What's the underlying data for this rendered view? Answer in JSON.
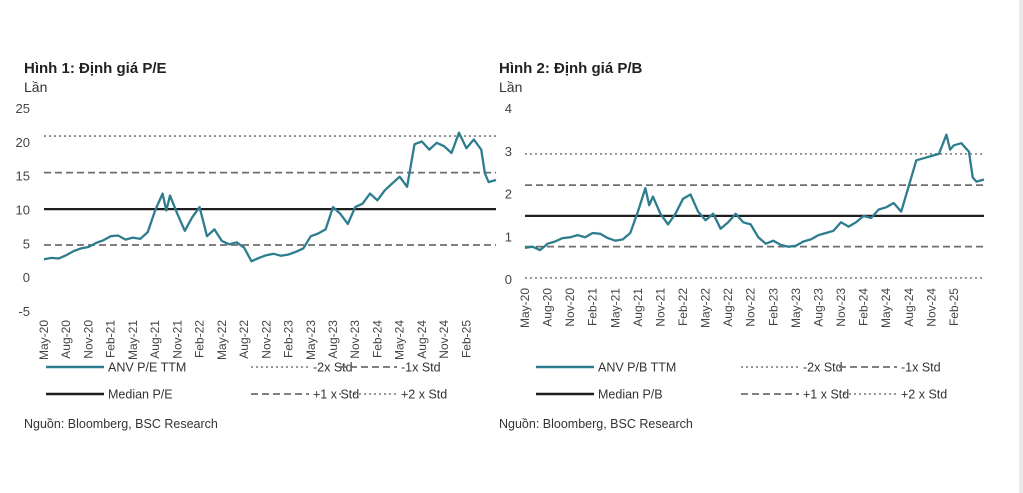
{
  "chart_data": [
    {
      "type": "line",
      "title": "Hình 1: Định giá P/E",
      "ylabel": "Lần",
      "source": "Nguồn: Bloomberg, BSC Research",
      "ylim": [
        -5,
        25
      ],
      "yticks": [
        -5,
        0,
        5,
        10,
        15,
        20,
        25
      ],
      "x_tick_labels": [
        "May-20",
        "Aug-20",
        "Nov-20",
        "Feb-21",
        "May-21",
        "Aug-21",
        "Nov-21",
        "Feb-22",
        "May-22",
        "Aug-22",
        "Nov-22",
        "Feb-23",
        "May-23",
        "Aug-23",
        "Nov-23",
        "Feb-24",
        "May-24",
        "Aug-24",
        "Nov-24",
        "Feb-25"
      ],
      "x_range_months": [
        0,
        61
      ],
      "series": [
        {
          "name": "ANV P/E TTM",
          "color": "#2e7d8f",
          "points": [
            [
              0,
              2.8
            ],
            [
              1,
              3.0
            ],
            [
              2,
              2.9
            ],
            [
              3,
              3.4
            ],
            [
              4,
              4.0
            ],
            [
              5,
              4.4
            ],
            [
              6,
              4.6
            ],
            [
              7,
              5.2
            ],
            [
              8,
              5.6
            ],
            [
              9,
              6.2
            ],
            [
              10,
              6.3
            ],
            [
              11,
              5.7
            ],
            [
              12,
              6.0
            ],
            [
              13,
              5.8
            ],
            [
              14,
              6.8
            ],
            [
              15,
              10.0
            ],
            [
              16,
              12.5
            ],
            [
              16.5,
              10.0
            ],
            [
              17,
              12.2
            ],
            [
              18,
              9.5
            ],
            [
              19,
              7.0
            ],
            [
              20,
              9.0
            ],
            [
              21,
              10.5
            ],
            [
              22,
              6.2
            ],
            [
              23,
              7.2
            ],
            [
              24,
              5.5
            ],
            [
              25,
              5.0
            ],
            [
              26,
              5.3
            ],
            [
              27,
              4.5
            ],
            [
              28,
              2.5
            ],
            [
              29,
              3.0
            ],
            [
              30,
              3.4
            ],
            [
              31,
              3.6
            ],
            [
              32,
              3.3
            ],
            [
              33,
              3.5
            ],
            [
              34,
              3.9
            ],
            [
              35,
              4.4
            ],
            [
              36,
              6.2
            ],
            [
              37,
              6.6
            ],
            [
              38,
              7.2
            ],
            [
              39,
              10.5
            ],
            [
              40,
              9.5
            ],
            [
              41,
              8.0
            ],
            [
              42,
              10.5
            ],
            [
              43,
              11.0
            ],
            [
              44,
              12.5
            ],
            [
              45,
              11.5
            ],
            [
              46,
              13.0
            ],
            [
              47,
              14.0
            ],
            [
              48,
              15.0
            ],
            [
              49,
              13.5
            ],
            [
              50,
              19.8
            ],
            [
              51,
              20.2
            ],
            [
              52,
              19.0
            ],
            [
              53,
              20.0
            ],
            [
              54,
              19.5
            ],
            [
              55,
              18.5
            ],
            [
              56,
              21.5
            ],
            [
              57,
              19.2
            ],
            [
              58,
              20.5
            ],
            [
              59,
              19.0
            ],
            [
              59.5,
              15.5
            ],
            [
              60,
              14.2
            ],
            [
              61,
              14.5
            ]
          ]
        }
      ],
      "reference_lines": [
        {
          "name": "Median P/E",
          "value": 10.2,
          "style": "solid",
          "color": "#1e1e1e"
        },
        {
          "name": "-2x Std",
          "value": -0.2,
          "style": "dotted",
          "color": "#8a8a8a",
          "drawn": false
        },
        {
          "name": "-1x Std",
          "value": 4.9,
          "style": "dashed",
          "color": "#6e6e6e"
        },
        {
          "name": "+1 x Std",
          "value": 15.6,
          "style": "dashed",
          "color": "#6e6e6e"
        },
        {
          "name": "+2 x Std",
          "value": 21.0,
          "style": "dotted",
          "color": "#8a8a8a"
        }
      ],
      "legend": [
        {
          "label": "ANV P/E TTM",
          "style": "solid-teal"
        },
        {
          "label": "-2x Std",
          "style": "dotted"
        },
        {
          "label": "-1x Std",
          "style": "dashed"
        },
        {
          "label": "Median P/E",
          "style": "solid-black"
        },
        {
          "label": "+1 x Std",
          "style": "dashed"
        },
        {
          "label": "+2 x Std",
          "style": "dotted"
        }
      ]
    },
    {
      "type": "line",
      "title": "Hình 2: Định giá P/B",
      "ylabel": "Lần",
      "source": "Nguồn: Bloomberg, BSC Research",
      "ylim": [
        0,
        4
      ],
      "yticks": [
        0,
        1,
        2,
        3,
        4
      ],
      "x_tick_labels": [
        "May-20",
        "Aug-20",
        "Nov-20",
        "Feb-21",
        "May-21",
        "Aug-21",
        "Nov-21",
        "Feb-22",
        "May-22",
        "Aug-22",
        "Nov-22",
        "Feb-23",
        "May-23",
        "Aug-23",
        "Nov-23",
        "Feb-24",
        "May-24",
        "Aug-24",
        "Nov-24",
        "Feb-25"
      ],
      "x_range_months": [
        0,
        61
      ],
      "series": [
        {
          "name": "ANV P/B TTM",
          "color": "#2e7d8f",
          "points": [
            [
              0,
              0.75
            ],
            [
              1,
              0.78
            ],
            [
              2,
              0.7
            ],
            [
              3,
              0.85
            ],
            [
              4,
              0.9
            ],
            [
              5,
              0.98
            ],
            [
              6,
              1.0
            ],
            [
              7,
              1.05
            ],
            [
              8,
              1.0
            ],
            [
              9,
              1.1
            ],
            [
              10,
              1.08
            ],
            [
              11,
              0.98
            ],
            [
              12,
              0.92
            ],
            [
              13,
              0.95
            ],
            [
              14,
              1.1
            ],
            [
              15,
              1.6
            ],
            [
              16,
              2.15
            ],
            [
              16.5,
              1.75
            ],
            [
              17,
              1.95
            ],
            [
              18,
              1.55
            ],
            [
              19,
              1.3
            ],
            [
              20,
              1.55
            ],
            [
              21,
              1.9
            ],
            [
              22,
              2.0
            ],
            [
              23,
              1.6
            ],
            [
              24,
              1.4
            ],
            [
              25,
              1.55
            ],
            [
              26,
              1.2
            ],
            [
              27,
              1.35
            ],
            [
              28,
              1.55
            ],
            [
              29,
              1.35
            ],
            [
              30,
              1.3
            ],
            [
              31,
              1.0
            ],
            [
              32,
              0.85
            ],
            [
              33,
              0.92
            ],
            [
              34,
              0.82
            ],
            [
              35,
              0.78
            ],
            [
              36,
              0.8
            ],
            [
              37,
              0.9
            ],
            [
              38,
              0.95
            ],
            [
              39,
              1.05
            ],
            [
              40,
              1.1
            ],
            [
              41,
              1.15
            ],
            [
              42,
              1.35
            ],
            [
              43,
              1.25
            ],
            [
              44,
              1.35
            ],
            [
              45,
              1.5
            ],
            [
              46,
              1.45
            ],
            [
              47,
              1.65
            ],
            [
              48,
              1.7
            ],
            [
              49,
              1.8
            ],
            [
              50,
              1.6
            ],
            [
              51,
              2.2
            ],
            [
              52,
              2.8
            ],
            [
              53,
              2.85
            ],
            [
              54,
              2.9
            ],
            [
              55,
              2.95
            ],
            [
              56,
              3.4
            ],
            [
              56.5,
              3.05
            ],
            [
              57,
              3.15
            ],
            [
              58,
              3.2
            ],
            [
              59,
              3.0
            ],
            [
              59.5,
              2.4
            ],
            [
              60,
              2.3
            ],
            [
              61,
              2.35
            ]
          ]
        }
      ],
      "reference_lines": [
        {
          "name": "Median P/B",
          "value": 1.5,
          "style": "solid",
          "color": "#1e1e1e"
        },
        {
          "name": "-2x Std",
          "value": 0.05,
          "style": "dotted",
          "color": "#8a8a8a"
        },
        {
          "name": "-1x Std",
          "value": 0.78,
          "style": "dashed",
          "color": "#6e6e6e"
        },
        {
          "name": "+1 x Std",
          "value": 2.22,
          "style": "dashed",
          "color": "#6e6e6e"
        },
        {
          "name": "+2 x Std",
          "value": 2.95,
          "style": "dotted",
          "color": "#8a8a8a"
        }
      ],
      "legend": [
        {
          "label": "ANV P/B TTM",
          "style": "solid-teal"
        },
        {
          "label": "-2x Std",
          "style": "dotted"
        },
        {
          "label": "-1x Std",
          "style": "dashed"
        },
        {
          "label": "Median P/B",
          "style": "solid-black"
        },
        {
          "label": "+1 x Std",
          "style": "dashed"
        },
        {
          "label": "+2 x Std",
          "style": "dotted"
        }
      ]
    }
  ]
}
